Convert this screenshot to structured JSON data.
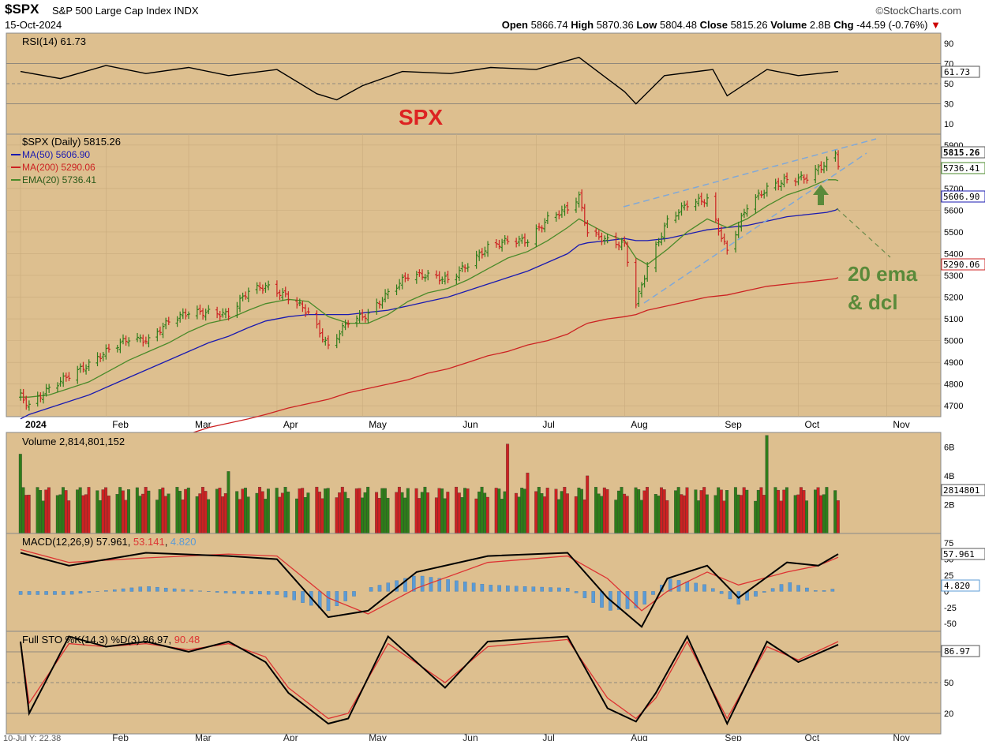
{
  "header": {
    "ticker": "$SPX",
    "name": "S&P 500 Large Cap Index",
    "exchange": "INDX",
    "date": "15-Oct-2024",
    "brand": "©StockCharts.com",
    "open_label": "Open",
    "open": "5866.74",
    "high_label": "High",
    "high": "5870.36",
    "low_label": "Low",
    "low": "5804.48",
    "close_label": "Close",
    "close": "5815.26",
    "volume_label": "Volume",
    "volume": "2.8B",
    "chg_label": "Chg",
    "chg": "-44.59 (-0.76%)",
    "chg_arrow": "▼"
  },
  "colors": {
    "panel_bg": "#ddbf8f",
    "up_bar": "#2e7d1a",
    "down_bar": "#cc2222",
    "ma50": "#1a1ab0",
    "ma200": "#cc2222",
    "ema20": "#4a8a2a",
    "trendline": "#7fa8d8",
    "annotation_red": "#dd2222",
    "annotation_green": "#5a8a3a",
    "histogram": "#5b9bd5"
  },
  "chart_data": [
    {
      "type": "line",
      "panel": "rsi",
      "title": "RSI(14) 61.73",
      "last_value": "61.73",
      "yticks": [
        "90",
        "70",
        "50",
        "30",
        "10"
      ],
      "ylim": [
        0,
        100
      ],
      "x": [
        "2024-01-02",
        "2024-01-16",
        "2024-02-01",
        "2024-02-15",
        "2024-03-01",
        "2024-03-15",
        "2024-04-01",
        "2024-04-15",
        "2024-04-22",
        "2024-05-01",
        "2024-05-15",
        "2024-06-01",
        "2024-06-15",
        "2024-07-01",
        "2024-07-16",
        "2024-08-01",
        "2024-08-05",
        "2024-08-15",
        "2024-09-01",
        "2024-09-06",
        "2024-09-20",
        "2024-10-01",
        "2024-10-15"
      ],
      "values": [
        62,
        55,
        68,
        60,
        66,
        58,
        64,
        40,
        34,
        48,
        62,
        60,
        66,
        64,
        76,
        42,
        30,
        58,
        64,
        38,
        64,
        58,
        62
      ]
    },
    {
      "type": "line",
      "panel": "price",
      "title": "$SPX (Daily) 5815.26",
      "annotation": "SPX",
      "annotation2_line1": "20 ema",
      "annotation2_line2": "& dcl",
      "legend": [
        {
          "name": "MA(50) 5606.90",
          "color": "#1a1ab0"
        },
        {
          "name": "MA(200) 5290.06",
          "color": "#cc2222"
        },
        {
          "name": "EMA(20) 5736.41",
          "color": "#4a8a2a"
        }
      ],
      "right_labels": [
        "5815.26",
        "5736.41",
        "5606.90",
        "5290.06"
      ],
      "yticks": [
        "5900",
        "5800",
        "5700",
        "5600",
        "5500",
        "5400",
        "5300",
        "5200",
        "5100",
        "5000",
        "4900",
        "4800",
        "4700"
      ],
      "ylim": [
        4650,
        5950
      ],
      "xticks": [
        "2024",
        "Feb",
        "Mar",
        "Apr",
        "May",
        "Jun",
        "Jul",
        "Aug",
        "Sep",
        "Oct",
        "Nov"
      ],
      "x": [
        "2024-01-02",
        "2024-01-05",
        "2024-01-12",
        "2024-01-19",
        "2024-01-26",
        "2024-02-02",
        "2024-02-09",
        "2024-02-16",
        "2024-02-23",
        "2024-03-01",
        "2024-03-08",
        "2024-03-15",
        "2024-03-22",
        "2024-03-28",
        "2024-04-05",
        "2024-04-12",
        "2024-04-19",
        "2024-04-26",
        "2024-05-03",
        "2024-05-10",
        "2024-05-17",
        "2024-05-24",
        "2024-05-31",
        "2024-06-07",
        "2024-06-14",
        "2024-06-21",
        "2024-06-28",
        "2024-07-05",
        "2024-07-12",
        "2024-07-16",
        "2024-07-19",
        "2024-07-26",
        "2024-08-01",
        "2024-08-05",
        "2024-08-09",
        "2024-08-16",
        "2024-08-23",
        "2024-08-30",
        "2024-09-06",
        "2024-09-13",
        "2024-09-20",
        "2024-09-27",
        "2024-10-04",
        "2024-10-11",
        "2024-10-14",
        "2024-10-15"
      ],
      "values": [
        4745,
        4700,
        4780,
        4840,
        4890,
        4960,
        5010,
        5000,
        5090,
        5130,
        5130,
        5120,
        5230,
        5250,
        5200,
        5130,
        4970,
        5090,
        5120,
        5220,
        5300,
        5300,
        5280,
        5350,
        5430,
        5460,
        5460,
        5560,
        5610,
        5660,
        5500,
        5460,
        5440,
        5170,
        5340,
        5550,
        5630,
        5650,
        5410,
        5620,
        5700,
        5740,
        5750,
        5820,
        5860,
        5815
      ],
      "ema20": [
        4740,
        4740,
        4750,
        4780,
        4810,
        4860,
        4910,
        4950,
        4990,
        5040,
        5080,
        5100,
        5140,
        5170,
        5190,
        5180,
        5110,
        5080,
        5080,
        5120,
        5180,
        5220,
        5240,
        5280,
        5330,
        5380,
        5410,
        5460,
        5520,
        5560,
        5540,
        5490,
        5460,
        5380,
        5350,
        5420,
        5500,
        5560,
        5520,
        5560,
        5620,
        5670,
        5700,
        5740,
        5740,
        5736
      ],
      "ma50": [
        4640,
        4660,
        4690,
        4720,
        4750,
        4790,
        4830,
        4870,
        4910,
        4950,
        4990,
        5020,
        5060,
        5090,
        5110,
        5120,
        5120,
        5120,
        5130,
        5140,
        5160,
        5180,
        5200,
        5230,
        5260,
        5290,
        5320,
        5360,
        5400,
        5440,
        5450,
        5460,
        5470,
        5460,
        5460,
        5470,
        5490,
        5510,
        5520,
        5530,
        5550,
        5570,
        5580,
        5590,
        5600,
        5607
      ],
      "ma200": [
        4400,
        4410,
        4430,
        4450,
        4470,
        4490,
        4510,
        4530,
        4550,
        4570,
        4600,
        4620,
        4640,
        4660,
        4690,
        4710,
        4730,
        4760,
        4780,
        4800,
        4820,
        4850,
        4870,
        4900,
        4930,
        4950,
        4980,
        5000,
        5030,
        5060,
        5080,
        5100,
        5110,
        5120,
        5140,
        5160,
        5180,
        5200,
        5210,
        5230,
        5250,
        5260,
        5270,
        5280,
        5285,
        5290
      ]
    },
    {
      "type": "bar",
      "panel": "volume",
      "title": "Volume 2,814,801,152",
      "last_value": "2814801",
      "yticks": [
        "6B",
        "4B",
        "2B"
      ],
      "ylim": [
        0,
        7000000000
      ],
      "spikes": [
        {
          "x": "2024-03-15",
          "value": 4300000000
        },
        {
          "x": "2024-06-21",
          "value": 6200000000
        },
        {
          "x": "2024-06-28",
          "value": 4200000000
        },
        {
          "x": "2024-07-19",
          "value": 4000000000
        },
        {
          "x": "2024-09-20",
          "value": 6800000000
        }
      ],
      "typical_value": 2800000000
    },
    {
      "type": "line",
      "panel": "macd",
      "title_parts": [
        "MACD(12,26,9) 57.961",
        "53.141",
        "4.820"
      ],
      "right_labels": [
        "57.961",
        "4.820"
      ],
      "yticks": [
        "75",
        "50",
        "25",
        "0",
        "-25",
        "-50"
      ],
      "ylim": [
        -62,
        90
      ],
      "x": [
        "2024-01-02",
        "2024-01-19",
        "2024-02-15",
        "2024-03-15",
        "2024-04-01",
        "2024-04-19",
        "2024-05-03",
        "2024-05-20",
        "2024-06-14",
        "2024-07-12",
        "2024-07-26",
        "2024-08-07",
        "2024-08-16",
        "2024-08-30",
        "2024-09-10",
        "2024-09-27",
        "2024-10-08",
        "2024-10-15"
      ],
      "macd": [
        60,
        40,
        60,
        55,
        50,
        -40,
        -30,
        30,
        55,
        60,
        -10,
        -55,
        20,
        40,
        -10,
        45,
        40,
        58
      ],
      "signal": [
        65,
        45,
        52,
        58,
        55,
        -10,
        -35,
        5,
        45,
        55,
        20,
        -30,
        0,
        30,
        10,
        30,
        40,
        53
      ],
      "histogram": [
        -5,
        -5,
        8,
        -3,
        -5,
        -30,
        5,
        25,
        10,
        5,
        -30,
        -25,
        20,
        10,
        -20,
        15,
        0,
        5
      ]
    },
    {
      "type": "line",
      "panel": "stochastic",
      "title_parts": [
        "Full STO %K(14,3) %D(3) 86.97",
        "90.48"
      ],
      "right_label": "86.97",
      "yticks": [
        "80",
        "50",
        "20"
      ],
      "ylim": [
        0,
        100
      ],
      "x": [
        "2024-01-02",
        "2024-01-05",
        "2024-01-19",
        "2024-02-01",
        "2024-02-15",
        "2024-03-01",
        "2024-03-15",
        "2024-03-28",
        "2024-04-05",
        "2024-04-19",
        "2024-04-26",
        "2024-05-10",
        "2024-05-30",
        "2024-06-14",
        "2024-07-12",
        "2024-07-26",
        "2024-08-05",
        "2024-08-12",
        "2024-08-23",
        "2024-09-06",
        "2024-09-20",
        "2024-10-01",
        "2024-10-15"
      ],
      "k": [
        90,
        20,
        95,
        85,
        90,
        80,
        90,
        70,
        40,
        10,
        15,
        95,
        45,
        90,
        95,
        25,
        12,
        40,
        95,
        10,
        90,
        70,
        87
      ],
      "d": [
        90,
        30,
        88,
        85,
        88,
        82,
        88,
        75,
        45,
        15,
        20,
        88,
        50,
        85,
        92,
        35,
        15,
        35,
        90,
        15,
        85,
        72,
        90
      ]
    }
  ],
  "footer": {
    "xticks_bottom": [
      "Feb",
      "Mar",
      "Apr",
      "May",
      "Jun",
      "Jul",
      "Aug",
      "Sep",
      "Oct",
      "Nov"
    ],
    "corner_readout": "10-Jul Y: 22.38"
  }
}
